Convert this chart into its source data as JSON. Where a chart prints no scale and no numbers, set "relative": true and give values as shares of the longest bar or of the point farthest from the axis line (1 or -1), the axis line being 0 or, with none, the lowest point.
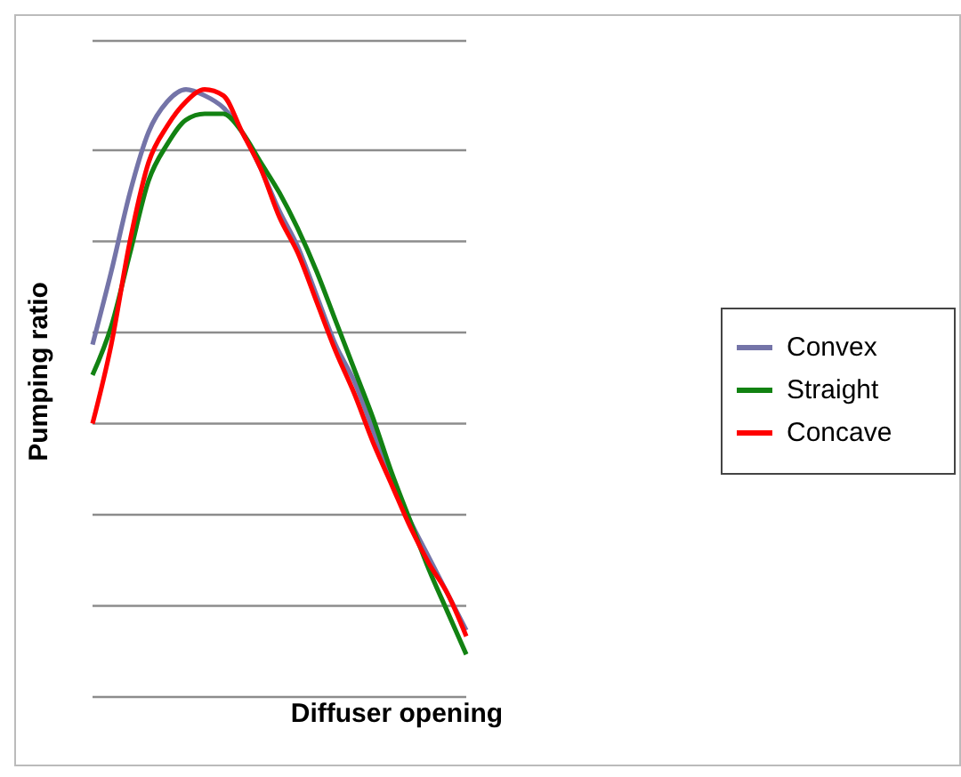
{
  "chart_data": {
    "type": "line",
    "relative": true,
    "xlabel": "Diffuser opening",
    "ylabel": "Pumping ratio",
    "categories": [
      null,
      null,
      null,
      null,
      null,
      null,
      null,
      null,
      null,
      null,
      null,
      null,
      null,
      null,
      null,
      null,
      null,
      null,
      null,
      null,
      null
    ],
    "series": [
      {
        "name": "Convex",
        "color": "#7474a8",
        "values": [
          0.58,
          0.7,
          0.83,
          0.93,
          0.98,
          1.0,
          0.99,
          0.97,
          0.93,
          0.87,
          0.8,
          0.74,
          0.66,
          0.58,
          0.52,
          0.44,
          0.36,
          0.29,
          0.23,
          0.17,
          0.11
        ]
      },
      {
        "name": "Straight",
        "color": "#128212",
        "values": [
          0.53,
          0.61,
          0.73,
          0.85,
          0.91,
          0.95,
          0.96,
          0.96,
          0.93,
          0.88,
          0.83,
          0.77,
          0.7,
          0.62,
          0.54,
          0.46,
          0.37,
          0.29,
          0.21,
          0.14,
          0.07
        ]
      },
      {
        "name": "Concave",
        "color": "#ff0000",
        "values": [
          0.45,
          0.58,
          0.75,
          0.88,
          0.94,
          0.98,
          1.0,
          0.99,
          0.93,
          0.87,
          0.79,
          0.73,
          0.65,
          0.57,
          0.5,
          0.42,
          0.35,
          0.28,
          0.22,
          0.17,
          0.1
        ]
      }
    ],
    "grid": "y",
    "legend": "right",
    "marker": "none",
    "line_style": "solid"
  }
}
